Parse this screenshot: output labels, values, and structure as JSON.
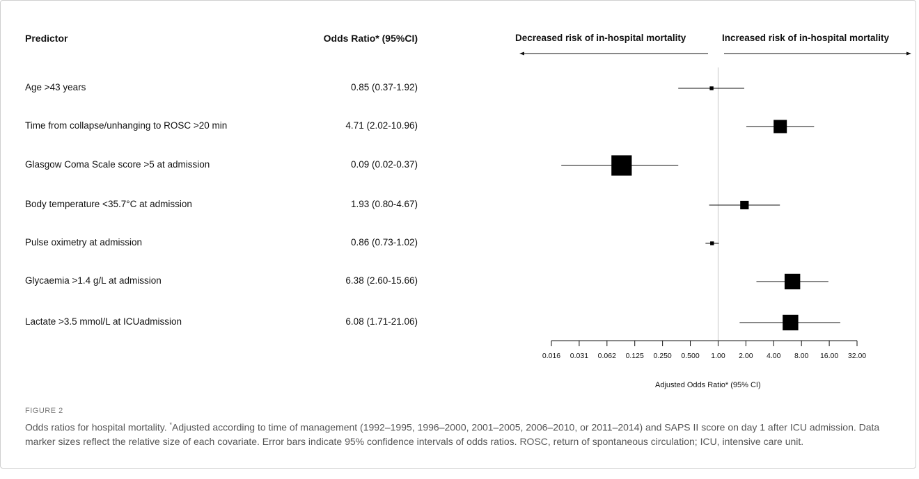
{
  "headers": {
    "predictor": "Predictor",
    "odds_ratio": "Odds Ratio* (95%CI)",
    "decreased": "Decreased risk of in-hospital mortality",
    "increased": "Increased risk of in-hospital mortality"
  },
  "chart_data": {
    "type": "forest",
    "xscale": "log2",
    "xlim": [
      0.016,
      32
    ],
    "reference_line": 1.0,
    "xlabel": "Adjusted Odds Ratio* (95% CI)",
    "tick_labels": [
      "0.016",
      "0.031",
      "0.062",
      "0.125",
      "0.250",
      "0.500",
      "1.00",
      "2.00",
      "4.00",
      "8.00",
      "16.00",
      "32.00"
    ],
    "rows": [
      {
        "predictor": "Age >43 years",
        "or_text": "0.85 (0.37-1.92)",
        "or": 0.85,
        "lo": 0.37,
        "hi": 1.92,
        "marker_size": 1
      },
      {
        "predictor": "Time from collapse/unhanging to ROSC >20 min",
        "or_text": "4.71 (2.02-10.96)",
        "or": 4.71,
        "lo": 2.02,
        "hi": 10.96,
        "marker_size": 5
      },
      {
        "predictor": "Glasgow Coma Scale score >5 at admission",
        "or_text": "0.09 (0.02-0.37)",
        "or": 0.09,
        "lo": 0.02,
        "hi": 0.37,
        "marker_size": 8
      },
      {
        "predictor": "Body temperature <35.7°C at admission",
        "or_text": "1.93 (0.80-4.67)",
        "or": 1.93,
        "lo": 0.8,
        "hi": 4.67,
        "marker_size": 3
      },
      {
        "predictor": "Pulse oximetry at admission",
        "or_text": "0.86 (0.73-1.02)",
        "or": 0.86,
        "lo": 0.73,
        "hi": 1.02,
        "marker_size": 1
      },
      {
        "predictor": "Glycaemia >1.4 g/L at admission",
        "or_text": "6.38 (2.60-15.66)",
        "or": 6.38,
        "lo": 2.6,
        "hi": 15.66,
        "marker_size": 6
      },
      {
        "predictor": "Lactate >3.5 mmol/L at ICUadmission",
        "or_text": "6.08 (1.71-21.06)",
        "or": 6.08,
        "lo": 1.71,
        "hi": 21.06,
        "marker_size": 6
      }
    ]
  },
  "caption": {
    "figure_label": "FIGURE 2",
    "text_before_sup": "Odds ratios for hospital mortality. ",
    "sup": "*",
    "text_after_sup": "Adjusted according to time of management (1992–1995, 1996–2000, 2001–2005, 2006–2010, or 2011–2014) and SAPS II score on day 1 after ICU admission. Data marker sizes reflect the relative size of each covariate. Error bars indicate 95% confidence intervals of odds ratios. ROSC, return of spontaneous circulation; ICU, intensive care unit."
  }
}
